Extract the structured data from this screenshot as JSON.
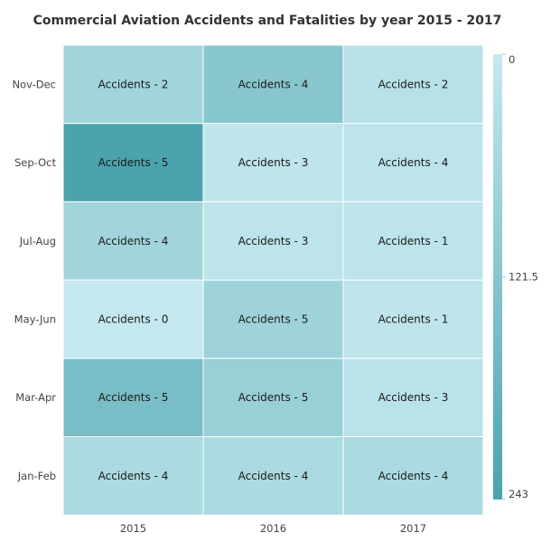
{
  "chart_data": {
    "type": "heatmap",
    "title": "Commercial Aviation Accidents and Fatalities by year 2015 - 2017",
    "x_categories": [
      "2015",
      "2016",
      "2017"
    ],
    "y_categories": [
      "Nov-Dec",
      "Sep-Oct",
      "Jul-Aug",
      "May-Jun",
      "Mar-Apr",
      "Jan-Feb"
    ],
    "cells": [
      {
        "y": "Nov-Dec",
        "x": "2015",
        "value": 70,
        "label": "Accidents - 2"
      },
      {
        "y": "Nov-Dec",
        "x": "2016",
        "value": 120,
        "label": "Accidents - 4"
      },
      {
        "y": "Nov-Dec",
        "x": "2017",
        "value": 25,
        "label": "Accidents - 2"
      },
      {
        "y": "Sep-Oct",
        "x": "2015",
        "value": 243,
        "label": "Accidents - 5"
      },
      {
        "y": "Sep-Oct",
        "x": "2016",
        "value": 10,
        "label": "Accidents - 3"
      },
      {
        "y": "Sep-Oct",
        "x": "2017",
        "value": 15,
        "label": "Accidents - 4"
      },
      {
        "y": "Jul-Aug",
        "x": "2015",
        "value": 70,
        "label": "Accidents - 4"
      },
      {
        "y": "Jul-Aug",
        "x": "2016",
        "value": 15,
        "label": "Accidents - 3"
      },
      {
        "y": "Jul-Aug",
        "x": "2017",
        "value": 15,
        "label": "Accidents - 1"
      },
      {
        "y": "May-Jun",
        "x": "2015",
        "value": 0,
        "label": "Accidents - 0"
      },
      {
        "y": "May-Jun",
        "x": "2016",
        "value": 75,
        "label": "Accidents - 5"
      },
      {
        "y": "May-Jun",
        "x": "2017",
        "value": 10,
        "label": "Accidents - 1"
      },
      {
        "y": "Mar-Apr",
        "x": "2015",
        "value": 150,
        "label": "Accidents - 5"
      },
      {
        "y": "Mar-Apr",
        "x": "2016",
        "value": 85,
        "label": "Accidents - 5"
      },
      {
        "y": "Mar-Apr",
        "x": "2017",
        "value": 20,
        "label": "Accidents - 3"
      },
      {
        "y": "Jan-Feb",
        "x": "2015",
        "value": 50,
        "label": "Accidents - 4"
      },
      {
        "y": "Jan-Feb",
        "x": "2016",
        "value": 50,
        "label": "Accidents - 4"
      },
      {
        "y": "Jan-Feb",
        "x": "2017",
        "value": 50,
        "label": "Accidents - 4"
      }
    ],
    "color_scale": {
      "min": 0,
      "max": 243,
      "min_color": "#c4e8ee",
      "max_color": "#4aa3ad",
      "tick_labels": [
        "0",
        "121.5",
        "243"
      ],
      "tick_values": [
        0,
        121.5,
        243
      ]
    },
    "legend_placement": "right",
    "grid": true
  }
}
